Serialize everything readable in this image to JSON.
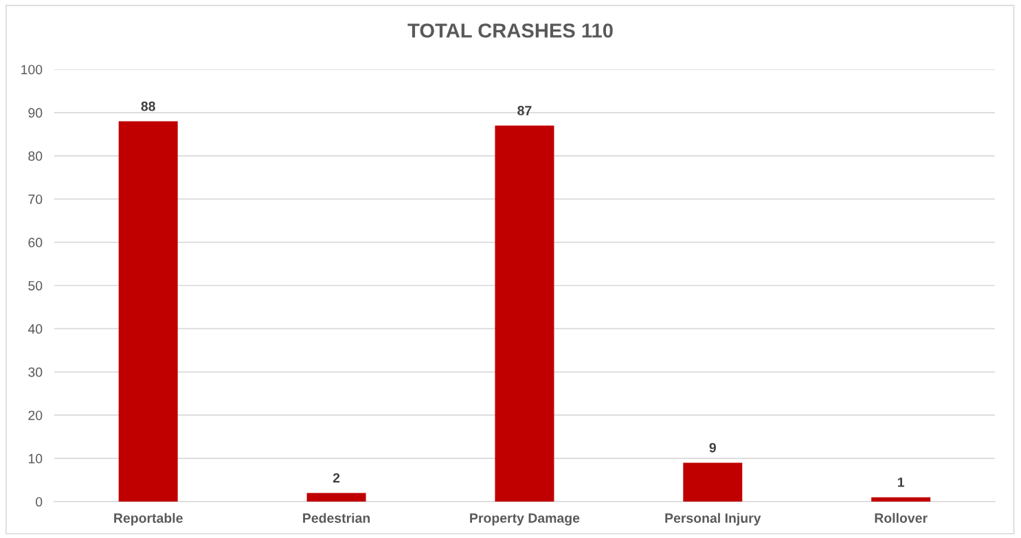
{
  "chart_data": {
    "type": "bar",
    "title": "TOTAL CRASHES 110",
    "categories": [
      "Reportable",
      "Pedestrian",
      "Property Damage",
      "Personal Injury",
      "Rollover"
    ],
    "values": [
      88,
      2,
      87,
      9,
      1
    ],
    "color": "#c00000",
    "ylim": [
      0,
      100
    ],
    "yticks": [
      0,
      10,
      20,
      30,
      40,
      50,
      60,
      70,
      80,
      90,
      100
    ],
    "grid": "y",
    "data_labels": true
  }
}
